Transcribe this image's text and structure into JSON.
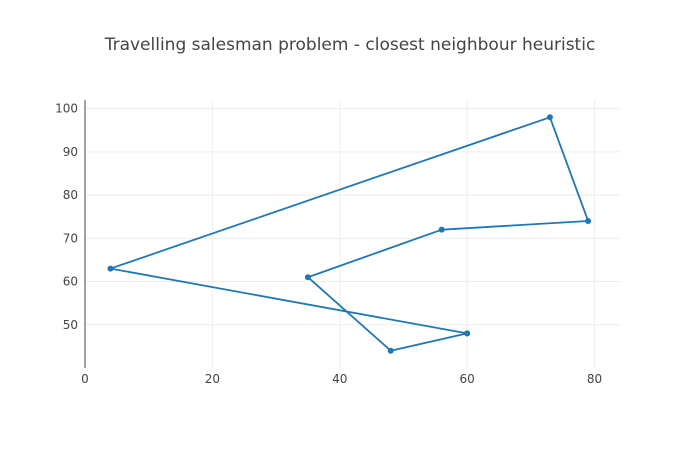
{
  "chart_data": {
    "type": "line",
    "title": "Travelling salesman problem - closest neighbour heuristic",
    "xlabel": "",
    "ylabel": "",
    "xlim": [
      0,
      84
    ],
    "ylim": [
      40,
      102
    ],
    "xticks": [
      0,
      20,
      40,
      60,
      80
    ],
    "yticks": [
      50,
      60,
      70,
      80,
      90,
      100
    ],
    "grid": true,
    "series": [
      {
        "x": [
          60,
          48,
          35,
          56,
          79,
          73,
          4,
          60
        ],
        "y": [
          48,
          44,
          61,
          72,
          74,
          98,
          63,
          48
        ]
      }
    ],
    "colors": {
      "series": "#1f77b4"
    }
  }
}
